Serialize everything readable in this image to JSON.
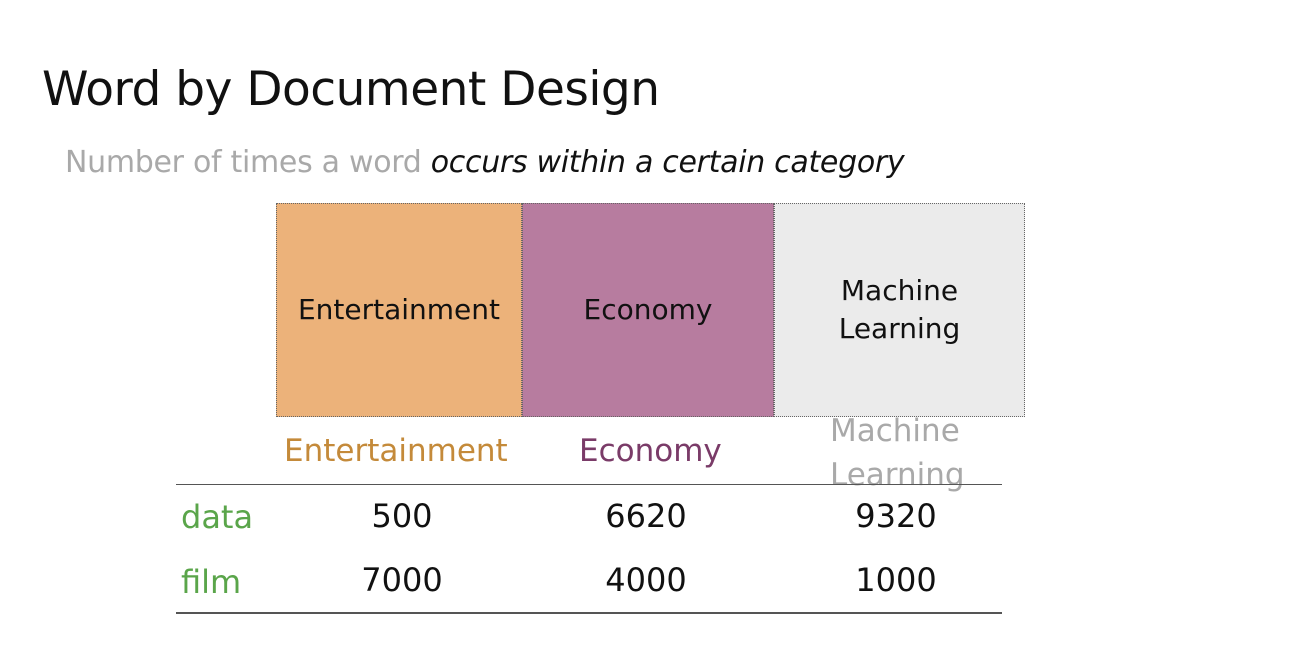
{
  "slide": {
    "title": "Word by Document Design",
    "subtitle_plain": "Number of times a word ",
    "subtitle_emph": "occurs within a certain category"
  },
  "categories": {
    "entertainment": {
      "label": "Entertainment",
      "color": "#ecb27a"
    },
    "economy": {
      "label": "Economy",
      "color": "#b77c9f"
    },
    "machine_learning": {
      "label": "Machine\nLearning",
      "color": "#ebebeb"
    }
  },
  "table": {
    "headers": {
      "entertainment": "Entertainment",
      "economy": "Economy",
      "machine_learning": "Machine\nLearning"
    },
    "rows": [
      {
        "word": "data",
        "entertainment": "500",
        "economy": "6620",
        "machine_learning": "9320"
      },
      {
        "word": "film",
        "entertainment": "7000",
        "economy": "4000",
        "machine_learning": "1000"
      }
    ]
  },
  "colors": {
    "row_label": "#5aa54a",
    "header_entertainment": "#c48a3a",
    "header_economy": "#7a3b68",
    "header_machine_learning": "#a9a9a9"
  }
}
